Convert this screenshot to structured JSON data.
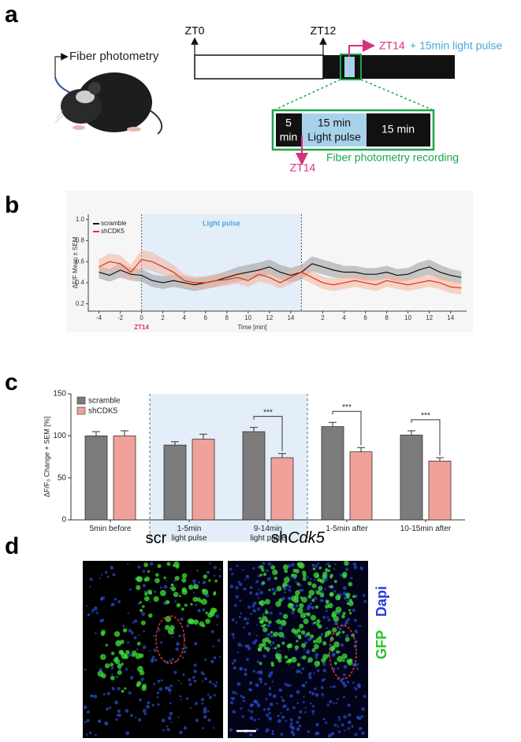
{
  "panel_labels": [
    "a",
    "b",
    "c",
    "d"
  ],
  "diagram": {
    "mouse_label": "Fiber photometry",
    "timeline_labels": [
      "ZT0",
      "ZT12"
    ],
    "zt14_label": "ZT14",
    "pulse_label": "+ 15min light pulse",
    "segments": [
      [
        "5",
        "min"
      ],
      [
        "15 min",
        "Light pulse"
      ],
      [
        "15 min"
      ]
    ],
    "recording_zt14_label": "ZT14",
    "recording_label": "Fiber photometry recording"
  },
  "chart_data": [
    {
      "type": "line",
      "y_label": "ΔF/F Mean ± SEM",
      "x_label": "Time [min]",
      "highlight": {
        "from": 0,
        "to": 15,
        "label": "Light pulse"
      },
      "zero_label": "ZT14",
      "x": [
        -4,
        -3,
        -2,
        -1,
        0,
        1,
        2,
        3,
        4,
        5,
        6,
        7,
        8,
        9,
        10,
        11,
        12,
        13,
        14,
        15,
        16,
        17,
        18,
        19,
        20,
        21,
        22,
        23,
        24,
        25,
        26,
        27,
        28,
        29,
        30
      ],
      "series": [
        {
          "name": "scramble",
          "color": "#111111",
          "band_color": "#9a9a9a",
          "values": [
            0.5,
            0.47,
            0.52,
            0.48,
            0.47,
            0.42,
            0.4,
            0.42,
            0.4,
            0.38,
            0.4,
            0.42,
            0.45,
            0.48,
            0.5,
            0.52,
            0.55,
            0.5,
            0.47,
            0.5,
            0.58,
            0.55,
            0.52,
            0.5,
            0.5,
            0.48,
            0.48,
            0.5,
            0.47,
            0.48,
            0.52,
            0.55,
            0.5,
            0.47,
            0.45
          ],
          "errors": [
            0.06,
            0.06,
            0.07,
            0.06,
            0.06,
            0.06,
            0.06,
            0.06,
            0.06,
            0.06,
            0.06,
            0.06,
            0.06,
            0.07,
            0.07,
            0.07,
            0.07,
            0.07,
            0.07,
            0.07,
            0.07,
            0.07,
            0.07,
            0.06,
            0.06,
            0.06,
            0.06,
            0.06,
            0.06,
            0.06,
            0.07,
            0.07,
            0.07,
            0.06,
            0.06
          ]
        },
        {
          "name": "shCDK5",
          "color": "#e0301e",
          "band_color": "#f2b49c",
          "values": [
            0.55,
            0.6,
            0.58,
            0.5,
            0.62,
            0.6,
            0.55,
            0.5,
            0.42,
            0.4,
            0.4,
            0.42,
            0.43,
            0.45,
            0.42,
            0.48,
            0.45,
            0.4,
            0.45,
            0.5,
            0.45,
            0.4,
            0.38,
            0.4,
            0.42,
            0.4,
            0.38,
            0.42,
            0.4,
            0.38,
            0.4,
            0.42,
            0.4,
            0.36,
            0.35
          ],
          "errors": [
            0.07,
            0.08,
            0.08,
            0.07,
            0.09,
            0.09,
            0.08,
            0.07,
            0.06,
            0.06,
            0.06,
            0.06,
            0.06,
            0.06,
            0.06,
            0.07,
            0.06,
            0.06,
            0.06,
            0.06,
            0.06,
            0.06,
            0.06,
            0.06,
            0.06,
            0.06,
            0.06,
            0.06,
            0.06,
            0.06,
            0.06,
            0.06,
            0.06,
            0.06,
            0.06
          ]
        }
      ],
      "xlim": [
        -5,
        30.5
      ],
      "ylim": [
        0.13,
        1.05
      ],
      "xticks": [
        -4,
        -2,
        0,
        2,
        4,
        6,
        8,
        10,
        12,
        14,
        {
          "value": 17,
          "label": "2"
        },
        {
          "value": 19,
          "label": "4"
        },
        {
          "value": 21,
          "label": "6"
        },
        {
          "value": 23,
          "label": "8"
        },
        {
          "value": 25,
          "label": "10"
        },
        {
          "value": 27,
          "label": "12"
        },
        {
          "value": 29,
          "label": "14"
        }
      ],
      "yticks": [
        0.2,
        0.4,
        0.6,
        0.8,
        {
          "value": 1,
          "label": "1.0"
        }
      ],
      "legend": "top-left"
    },
    {
      "type": "bar",
      "y_label": "ΔF/F₀ Change + SEM [%]",
      "categories": [
        "5min before",
        "1-5min\nlight pulse",
        "9-14min\nlight pulse",
        "1-5min after",
        "10-15min after"
      ],
      "series": [
        {
          "name": "scramble",
          "color": "#7b7b7b",
          "values": [
            100,
            89,
            105,
            111,
            101
          ],
          "errors": [
            5,
            4,
            5,
            5,
            5
          ]
        },
        {
          "name": "shCDK5",
          "color": "#f0a19a",
          "values": [
            100,
            96,
            74,
            81,
            70
          ],
          "errors": [
            6,
            6,
            5,
            5,
            4
          ]
        }
      ],
      "shaded_categories": [
        1,
        2
      ],
      "significance": [
        {
          "category": 2,
          "label": "***"
        },
        {
          "category": 3,
          "label": "***"
        },
        {
          "category": 4,
          "label": "***"
        }
      ],
      "ylim": [
        0,
        150
      ],
      "yticks": [
        0,
        50,
        100,
        150
      ],
      "legend": "top-left"
    }
  ],
  "images": {
    "titles": [
      {
        "text": "scr"
      },
      {
        "prefix": "sh",
        "gene": "Cdk5"
      }
    ],
    "stain_labels": [
      "GFP",
      "Dapi"
    ]
  }
}
